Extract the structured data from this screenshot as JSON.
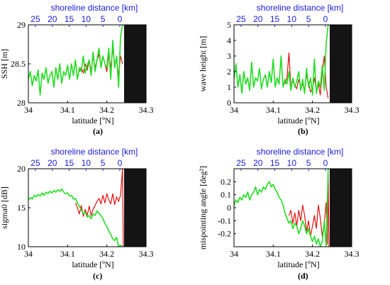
{
  "figure": {
    "top_axis_color": "#1a1adc",
    "shore_fill": "#141414",
    "colors": {
      "red": "#e01010",
      "green": "#22dd22"
    }
  },
  "chart_data": [
    {
      "id": "a",
      "panel_label": "(a)",
      "type": "line",
      "ylabel": "SSH [m]",
      "xlabel": "latitude [ºN]",
      "xlabel_top": "shoreline distance [km]",
      "xlim": [
        34,
        34.3
      ],
      "ylim": [
        28,
        29
      ],
      "xticks": [
        34,
        34.1,
        34.2,
        34.3
      ],
      "xtick_labels": [
        "34",
        "34.1",
        "34.2",
        "34.3"
      ],
      "yticks": [
        28,
        28.5,
        29
      ],
      "ytick_labels": [
        "28",
        "28.5",
        "29"
      ],
      "top_ticks": [
        25,
        20,
        15,
        10,
        5,
        0
      ],
      "top_tick_lat": [
        34.018,
        34.061,
        34.104,
        34.147,
        34.19,
        34.233
      ],
      "shore_start": 34.244,
      "series": [
        {
          "color": "red",
          "x": [
            34.13,
            34.135,
            34.14,
            34.145,
            34.15,
            34.155,
            34.16,
            34.165,
            34.17,
            34.175,
            34.18,
            34.185,
            34.19,
            34.195,
            34.2,
            34.205,
            34.21,
            34.215,
            34.22,
            34.225,
            34.23,
            34.235,
            34.24
          ],
          "y": [
            28.4,
            28.45,
            28.38,
            28.5,
            28.42,
            28.55,
            28.4,
            28.6,
            28.45,
            28.55,
            28.62,
            28.48,
            28.6,
            28.5,
            28.4,
            28.62,
            28.45,
            28.7,
            28.5,
            28.55,
            28.35,
            28.6,
            28.5
          ]
        },
        {
          "color": "green",
          "x": [
            34.0,
            34.005,
            34.01,
            34.015,
            34.02,
            34.025,
            34.03,
            34.035,
            34.04,
            34.045,
            34.05,
            34.055,
            34.06,
            34.065,
            34.07,
            34.075,
            34.08,
            34.085,
            34.09,
            34.095,
            34.1,
            34.105,
            34.11,
            34.115,
            34.12,
            34.125,
            34.13,
            34.135,
            34.14,
            34.145,
            34.15,
            34.155,
            34.16,
            34.165,
            34.17,
            34.175,
            34.18,
            34.185,
            34.19,
            34.195,
            34.2,
            34.205,
            34.21,
            34.215,
            34.22,
            34.225,
            34.23,
            34.235,
            34.24
          ],
          "y": [
            28.3,
            28.4,
            28.22,
            28.35,
            28.28,
            28.42,
            28.1,
            28.38,
            28.3,
            28.45,
            28.25,
            28.35,
            28.4,
            28.2,
            28.45,
            28.3,
            28.5,
            28.25,
            28.4,
            28.35,
            28.48,
            28.3,
            28.5,
            28.35,
            28.55,
            28.3,
            28.45,
            28.4,
            28.6,
            28.38,
            28.48,
            28.55,
            28.35,
            28.65,
            28.4,
            28.55,
            28.7,
            28.45,
            28.6,
            28.5,
            28.45,
            28.7,
            28.3,
            28.8,
            28.45,
            28.6,
            28.2,
            28.85,
            29.0
          ]
        }
      ]
    },
    {
      "id": "b",
      "panel_label": "(b)",
      "type": "line",
      "ylabel": "wave height [m]",
      "xlabel": "latitude [ºN]",
      "xlabel_top": "shoreline distance [km]",
      "xlim": [
        34,
        34.3
      ],
      "ylim": [
        0,
        5
      ],
      "xticks": [
        34,
        34.1,
        34.2,
        34.3
      ],
      "xtick_labels": [
        "34",
        "34.1",
        "34.2",
        "34.3"
      ],
      "yticks": [
        0,
        1,
        2,
        3,
        4,
        5
      ],
      "ytick_labels": [
        "0",
        "1",
        "2",
        "3",
        "4",
        "5"
      ],
      "top_ticks": [
        25,
        20,
        15,
        10,
        5,
        0
      ],
      "top_tick_lat": [
        34.018,
        34.061,
        34.104,
        34.147,
        34.19,
        34.233
      ],
      "shore_start": 34.244,
      "series": [
        {
          "color": "red",
          "x": [
            34.13,
            34.135,
            34.14,
            34.145,
            34.15,
            34.155,
            34.16,
            34.165,
            34.17,
            34.175,
            34.18,
            34.185,
            34.19,
            34.195,
            34.2,
            34.205,
            34.21,
            34.215,
            34.22,
            34.225,
            34.23,
            34.235,
            34.24
          ],
          "y": [
            1.2,
            1.6,
            3.2,
            1.0,
            1.4,
            1.1,
            0.9,
            1.5,
            1.0,
            1.2,
            0.8,
            1.8,
            1.3,
            0.7,
            0.9,
            1.6,
            0.8,
            1.2,
            0.5,
            2.0,
            3.0,
            1.0,
            0.3
          ]
        },
        {
          "color": "green",
          "x": [
            34.0,
            34.005,
            34.01,
            34.015,
            34.02,
            34.025,
            34.03,
            34.035,
            34.04,
            34.045,
            34.05,
            34.055,
            34.06,
            34.065,
            34.07,
            34.075,
            34.08,
            34.085,
            34.09,
            34.095,
            34.1,
            34.105,
            34.11,
            34.115,
            34.12,
            34.125,
            34.13,
            34.135,
            34.14,
            34.145,
            34.15,
            34.155,
            34.16,
            34.165,
            34.17,
            34.175,
            34.18,
            34.185,
            34.19,
            34.195,
            34.2,
            34.205,
            34.21,
            34.215,
            34.22,
            34.225,
            34.23,
            34.235,
            34.24
          ],
          "y": [
            1.5,
            2.5,
            1.0,
            1.8,
            0.6,
            2.0,
            1.2,
            1.6,
            0.8,
            2.6,
            1.0,
            1.6,
            1.4,
            2.2,
            0.9,
            1.5,
            1.8,
            1.0,
            2.0,
            1.3,
            2.8,
            1.0,
            1.6,
            1.2,
            3.0,
            1.0,
            1.5,
            1.2,
            2.0,
            0.8,
            1.6,
            1.0,
            1.4,
            2.0,
            0.8,
            1.5,
            0.6,
            2.2,
            1.0,
            1.6,
            0.5,
            2.8,
            0.6,
            1.4,
            1.0,
            2.4,
            0.8,
            3.8,
            5.0
          ]
        }
      ]
    },
    {
      "id": "c",
      "panel_label": "(c)",
      "type": "line",
      "ylabel": "sigma0 [dB]",
      "xlabel": "latitude [ºN]",
      "xlabel_top": "shoreline distance [km]",
      "xlim": [
        34,
        34.3
      ],
      "ylim": [
        10,
        20
      ],
      "xticks": [
        34,
        34.1,
        34.2,
        34.3
      ],
      "xtick_labels": [
        "34",
        "34.1",
        "34.2",
        "34.3"
      ],
      "yticks": [
        10,
        15,
        20
      ],
      "ytick_labels": [
        "10",
        "15",
        "20"
      ],
      "top_ticks": [
        25,
        20,
        15,
        10,
        5,
        0
      ],
      "top_tick_lat": [
        34.018,
        34.061,
        34.104,
        34.147,
        34.19,
        34.233
      ],
      "shore_start": 34.244,
      "series": [
        {
          "color": "red",
          "x": [
            34.12,
            34.125,
            34.13,
            34.135,
            34.14,
            34.145,
            34.15,
            34.155,
            34.16,
            34.165,
            34.17,
            34.175,
            34.18,
            34.185,
            34.19,
            34.195,
            34.2,
            34.205,
            34.21,
            34.215,
            34.22,
            34.225,
            34.23,
            34.235,
            34.24,
            34.242
          ],
          "y": [
            15.6,
            15.0,
            14.2,
            15.3,
            13.9,
            14.8,
            14.0,
            15.2,
            14.0,
            14.8,
            15.3,
            15.8,
            16.2,
            15.5,
            16.6,
            15.6,
            16.8,
            16.0,
            15.5,
            16.8,
            15.4,
            16.4,
            15.8,
            16.6,
            20.0,
            10.0
          ]
        },
        {
          "color": "green",
          "x": [
            34.0,
            34.005,
            34.01,
            34.015,
            34.02,
            34.025,
            34.03,
            34.035,
            34.04,
            34.045,
            34.05,
            34.055,
            34.06,
            34.065,
            34.07,
            34.075,
            34.08,
            34.085,
            34.09,
            34.095,
            34.1,
            34.105,
            34.11,
            34.115,
            34.12,
            34.125,
            34.13,
            34.135,
            34.14,
            34.145,
            34.15,
            34.155,
            34.16,
            34.165,
            34.17,
            34.175,
            34.18,
            34.185,
            34.19,
            34.195,
            34.2,
            34.205,
            34.21,
            34.215,
            34.22,
            34.225,
            34.23,
            34.235,
            34.24
          ],
          "y": [
            16.0,
            16.3,
            16.1,
            16.6,
            16.4,
            16.7,
            16.5,
            16.9,
            16.6,
            17.0,
            16.8,
            17.1,
            16.9,
            17.2,
            17.0,
            17.3,
            17.1,
            17.4,
            17.0,
            16.8,
            16.9,
            16.5,
            16.6,
            16.1,
            16.2,
            15.6,
            15.2,
            14.7,
            14.2,
            14.5,
            13.8,
            14.0,
            13.6,
            14.2,
            14.0,
            14.6,
            14.3,
            14.0,
            13.6,
            13.0,
            12.6,
            12.0,
            11.6,
            11.0,
            10.8,
            11.2,
            10.0,
            10.2,
            10.0
          ]
        }
      ]
    },
    {
      "id": "d",
      "panel_label": "(d)",
      "type": "line",
      "ylabel": "mispointing angle [deg²]",
      "xlabel": "latitude [ºN]",
      "xlabel_top": "shoreline distance [km]",
      "xlim": [
        34,
        34.3
      ],
      "ylim": [
        -0.3,
        0.3
      ],
      "xticks": [
        34,
        34.1,
        34.2,
        34.3
      ],
      "xtick_labels": [
        "34",
        "34.1",
        "34.2",
        "34.3"
      ],
      "yticks": [
        -0.2,
        -0.1,
        0,
        0.1,
        0.2
      ],
      "ytick_labels": [
        "-0.2",
        "-0.1",
        "0",
        "0.1",
        "0.2"
      ],
      "top_ticks": [
        25,
        20,
        15,
        10,
        5,
        0
      ],
      "top_tick_lat": [
        34.018,
        34.061,
        34.104,
        34.147,
        34.19,
        34.233
      ],
      "shore_start": 34.244,
      "series": [
        {
          "color": "red",
          "x": [
            34.14,
            34.145,
            34.15,
            34.155,
            34.16,
            34.165,
            34.17,
            34.175,
            34.18,
            34.185,
            34.19,
            34.195,
            34.2,
            34.205,
            34.21,
            34.215,
            34.22,
            34.225,
            34.23,
            34.235,
            34.238,
            34.24,
            34.242
          ],
          "y": [
            -0.06,
            -0.02,
            -0.12,
            -0.04,
            -0.14,
            -0.02,
            -0.1,
            0.02,
            -0.06,
            -0.18,
            -0.1,
            -0.22,
            -0.14,
            -0.06,
            -0.16,
            0.02,
            -0.08,
            -0.22,
            -0.12,
            0.04,
            -0.28,
            0.3,
            -0.3
          ]
        },
        {
          "color": "green",
          "x": [
            34.0,
            34.005,
            34.01,
            34.015,
            34.02,
            34.025,
            34.03,
            34.035,
            34.04,
            34.045,
            34.05,
            34.055,
            34.06,
            34.065,
            34.07,
            34.075,
            34.08,
            34.085,
            34.09,
            34.095,
            34.1,
            34.105,
            34.11,
            34.115,
            34.12,
            34.125,
            34.13,
            34.135,
            34.14,
            34.145,
            34.15,
            34.155,
            34.16,
            34.165,
            34.17,
            34.175,
            34.18,
            34.185,
            34.19,
            34.195,
            34.2,
            34.205,
            34.21,
            34.215,
            34.22,
            34.225,
            34.23,
            34.235,
            34.24
          ],
          "y": [
            0.02,
            0.06,
            0.04,
            0.08,
            0.06,
            0.1,
            0.08,
            0.12,
            0.06,
            0.1,
            0.12,
            0.16,
            0.1,
            0.14,
            0.12,
            0.16,
            0.14,
            0.18,
            0.2,
            0.16,
            0.18,
            0.14,
            0.12,
            0.08,
            0.06,
            0.02,
            -0.04,
            -0.08,
            -0.12,
            -0.1,
            -0.16,
            -0.12,
            -0.14,
            -0.2,
            -0.16,
            -0.1,
            -0.14,
            -0.2,
            -0.16,
            -0.22,
            -0.26,
            -0.22,
            -0.28,
            -0.24,
            -0.3,
            -0.26,
            -0.1,
            -0.3,
            0.3
          ]
        }
      ]
    }
  ]
}
